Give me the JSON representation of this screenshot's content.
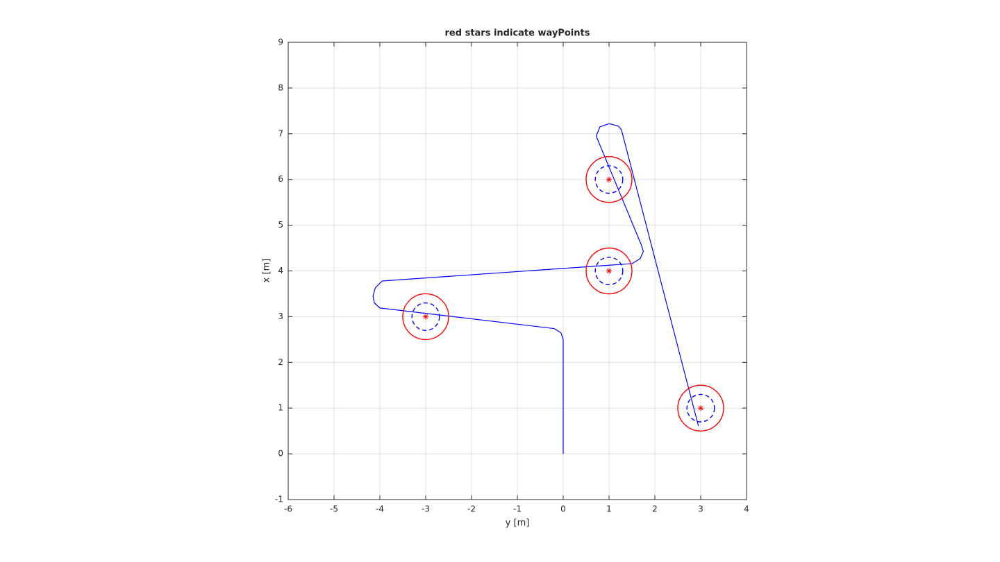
{
  "chart_data": {
    "type": "line",
    "title": "red stars indicate wayPoints",
    "xlabel": "y [m]",
    "ylabel": "x [m]",
    "xlim": [
      -6,
      4
    ],
    "ylim": [
      -1,
      9
    ],
    "xticks": [
      -6,
      -5,
      -4,
      -3,
      -2,
      -1,
      0,
      1,
      2,
      3,
      4
    ],
    "yticks": [
      -1,
      0,
      1,
      2,
      3,
      4,
      5,
      6,
      7,
      8,
      9
    ],
    "grid": true,
    "series": [
      {
        "color": "#0000ff",
        "x": [
          0,
          0,
          -0.05,
          -0.2,
          -4.0,
          -4.12,
          -4.15,
          -4.1,
          -3.95,
          1.5,
          1.68,
          1.75,
          1.7,
          0.72,
          0.8,
          1.0,
          1.2,
          1.27,
          2.95
        ],
        "values": [
          0,
          2.5,
          2.65,
          2.74,
          3.19,
          3.3,
          3.45,
          3.63,
          3.78,
          4.16,
          4.27,
          4.43,
          4.58,
          6.95,
          7.15,
          7.22,
          7.17,
          7.09,
          0.61
        ]
      }
    ],
    "waypoints": {
      "color": "#ff0000",
      "x": [
        -3,
        1,
        1,
        3
      ],
      "y": [
        3,
        4,
        6,
        1
      ],
      "radius": 0.5,
      "radius_color": "#ff0000",
      "inner_radius": 0.3,
      "inner_color": "#0000ff"
    }
  }
}
